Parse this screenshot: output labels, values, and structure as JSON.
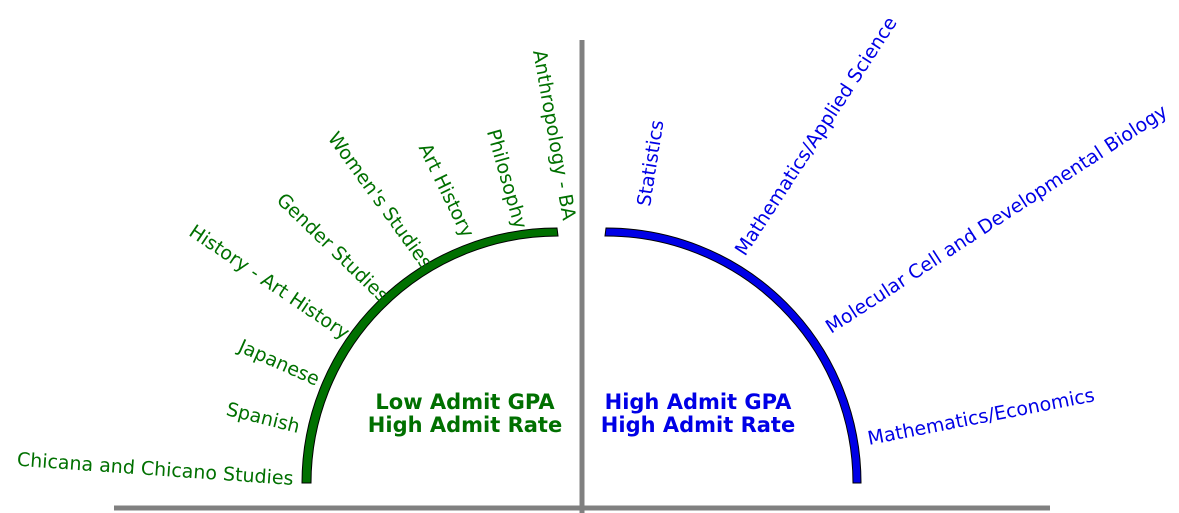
{
  "colors": {
    "left": "#007000",
    "right": "#0000e6",
    "axis": "#808080"
  },
  "left_group": {
    "title_line1": "Low Admit GPA",
    "title_line2": "High Admit Rate",
    "labels": [
      "Chicana and Chicano Studies",
      "Spanish",
      "Japanese",
      "History - Art History",
      "Gender Studies",
      "Women's Studies",
      "Art History",
      "Philosophy",
      "Anthropology - BA"
    ]
  },
  "right_group": {
    "title_line1": "High Admit GPA",
    "title_line2": "High Admit Rate",
    "labels": [
      "Statistics",
      "Mathematics/Applied Science",
      "Molecular Cell and Developmental Biology",
      "Mathematics/Economics"
    ]
  }
}
